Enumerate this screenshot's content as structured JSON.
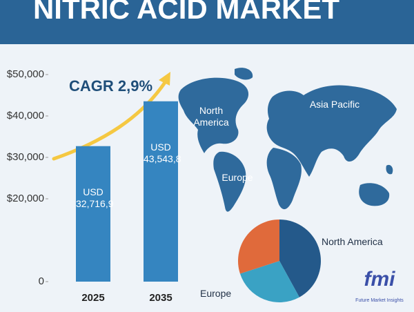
{
  "title": "NITRIC ACID MARKET",
  "chart_data": [
    {
      "type": "bar",
      "annotation": "CAGR 2,9%",
      "categories": [
        "2025",
        "2035"
      ],
      "values": [
        32716.9,
        43543.8
      ],
      "value_labels": [
        "USD 32,716,9",
        "USD 43,543,8"
      ],
      "color": "#3585c0",
      "ylim": [
        0,
        50000
      ],
      "yticks": [
        0,
        {
          "value": 20000,
          "label": "$20,000"
        },
        {
          "value": 30000,
          "label": "$30,000"
        },
        {
          "value": 40000,
          "label": "$40,000"
        },
        {
          "value": 50000,
          "label": "$50,000"
        }
      ]
    },
    {
      "type": "pie",
      "categories": [
        "North America",
        null,
        "Europe"
      ],
      "values": [
        42,
        28,
        30
      ],
      "colors": [
        "#24598a",
        "#3aa2c4",
        "#e06a3b"
      ]
    }
  ],
  "map": {
    "labels": [
      "North America",
      "Europe",
      "Asia Pacific"
    ]
  },
  "logo": {
    "text": "fmi",
    "caption": "Future Market Insights"
  }
}
